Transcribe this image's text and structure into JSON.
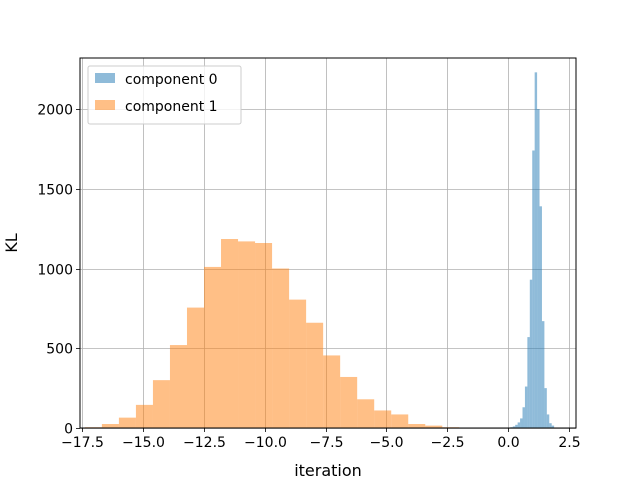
{
  "chart_data": {
    "type": "bar",
    "subtype": "histogram",
    "title": "",
    "xlabel": "iteration",
    "ylabel": "KL",
    "xlim": [
      -17.6,
      2.8
    ],
    "ylim": [
      0,
      2320
    ],
    "xticks": [
      -17.5,
      -15.0,
      -12.5,
      -10.0,
      -7.5,
      -5.0,
      -2.5,
      0.0,
      2.5
    ],
    "xtick_labels": [
      "−17.5",
      "−15.0",
      "−12.5",
      "−10.0",
      "−7.5",
      "−5.0",
      "−2.5",
      "0.0",
      "2.5"
    ],
    "yticks": [
      0,
      500,
      1000,
      1500,
      2000
    ],
    "ytick_labels": [
      "0",
      "500",
      "1000",
      "1500",
      "2000"
    ],
    "grid": true,
    "legend_position": "upper-left",
    "series": [
      {
        "name": "component 0",
        "color": "#1f77b4",
        "alpha": 0.5,
        "bins": [
          {
            "x0": 0.1,
            "x1": 0.2,
            "value": 5
          },
          {
            "x0": 0.2,
            "x1": 0.3,
            "value": 10
          },
          {
            "x0": 0.3,
            "x1": 0.4,
            "value": 20
          },
          {
            "x0": 0.4,
            "x1": 0.5,
            "value": 35
          },
          {
            "x0": 0.5,
            "x1": 0.6,
            "value": 60
          },
          {
            "x0": 0.6,
            "x1": 0.7,
            "value": 130
          },
          {
            "x0": 0.7,
            "x1": 0.8,
            "value": 260
          },
          {
            "x0": 0.8,
            "x1": 0.9,
            "value": 570
          },
          {
            "x0": 0.9,
            "x1": 1.0,
            "value": 930
          },
          {
            "x0": 1.0,
            "x1": 1.1,
            "value": 1740
          },
          {
            "x0": 1.1,
            "x1": 1.2,
            "value": 2230
          },
          {
            "x0": 1.2,
            "x1": 1.3,
            "value": 2000
          },
          {
            "x0": 1.3,
            "x1": 1.4,
            "value": 1390
          },
          {
            "x0": 1.4,
            "x1": 1.5,
            "value": 670
          },
          {
            "x0": 1.5,
            "x1": 1.6,
            "value": 250
          },
          {
            "x0": 1.6,
            "x1": 1.7,
            "value": 85
          },
          {
            "x0": 1.7,
            "x1": 1.8,
            "value": 30
          },
          {
            "x0": 1.8,
            "x1": 1.9,
            "value": 15
          }
        ]
      },
      {
        "name": "component 1",
        "color": "#ff7f0e",
        "alpha": 0.5,
        "bins": [
          {
            "x0": -17.4,
            "x1": -16.7,
            "value": 5
          },
          {
            "x0": -16.7,
            "x1": -16.0,
            "value": 25
          },
          {
            "x0": -16.0,
            "x1": -15.3,
            "value": 65
          },
          {
            "x0": -15.3,
            "x1": -14.6,
            "value": 145
          },
          {
            "x0": -14.6,
            "x1": -13.9,
            "value": 300
          },
          {
            "x0": -13.9,
            "x1": -13.2,
            "value": 520
          },
          {
            "x0": -13.2,
            "x1": -12.5,
            "value": 755
          },
          {
            "x0": -12.5,
            "x1": -11.8,
            "value": 1010
          },
          {
            "x0": -11.8,
            "x1": -11.1,
            "value": 1185
          },
          {
            "x0": -11.1,
            "x1": -10.4,
            "value": 1170
          },
          {
            "x0": -10.4,
            "x1": -9.7,
            "value": 1160
          },
          {
            "x0": -9.7,
            "x1": -9.0,
            "value": 1000
          },
          {
            "x0": -9.0,
            "x1": -8.3,
            "value": 805
          },
          {
            "x0": -8.3,
            "x1": -7.6,
            "value": 660
          },
          {
            "x0": -7.6,
            "x1": -6.9,
            "value": 455
          },
          {
            "x0": -6.9,
            "x1": -6.2,
            "value": 320
          },
          {
            "x0": -6.2,
            "x1": -5.5,
            "value": 180
          },
          {
            "x0": -5.5,
            "x1": -4.8,
            "value": 110
          },
          {
            "x0": -4.8,
            "x1": -4.1,
            "value": 85
          },
          {
            "x0": -4.1,
            "x1": -3.4,
            "value": 25
          },
          {
            "x0": -3.4,
            "x1": -2.7,
            "value": 15
          },
          {
            "x0": -2.7,
            "x1": -2.0,
            "value": 5
          }
        ]
      }
    ]
  }
}
